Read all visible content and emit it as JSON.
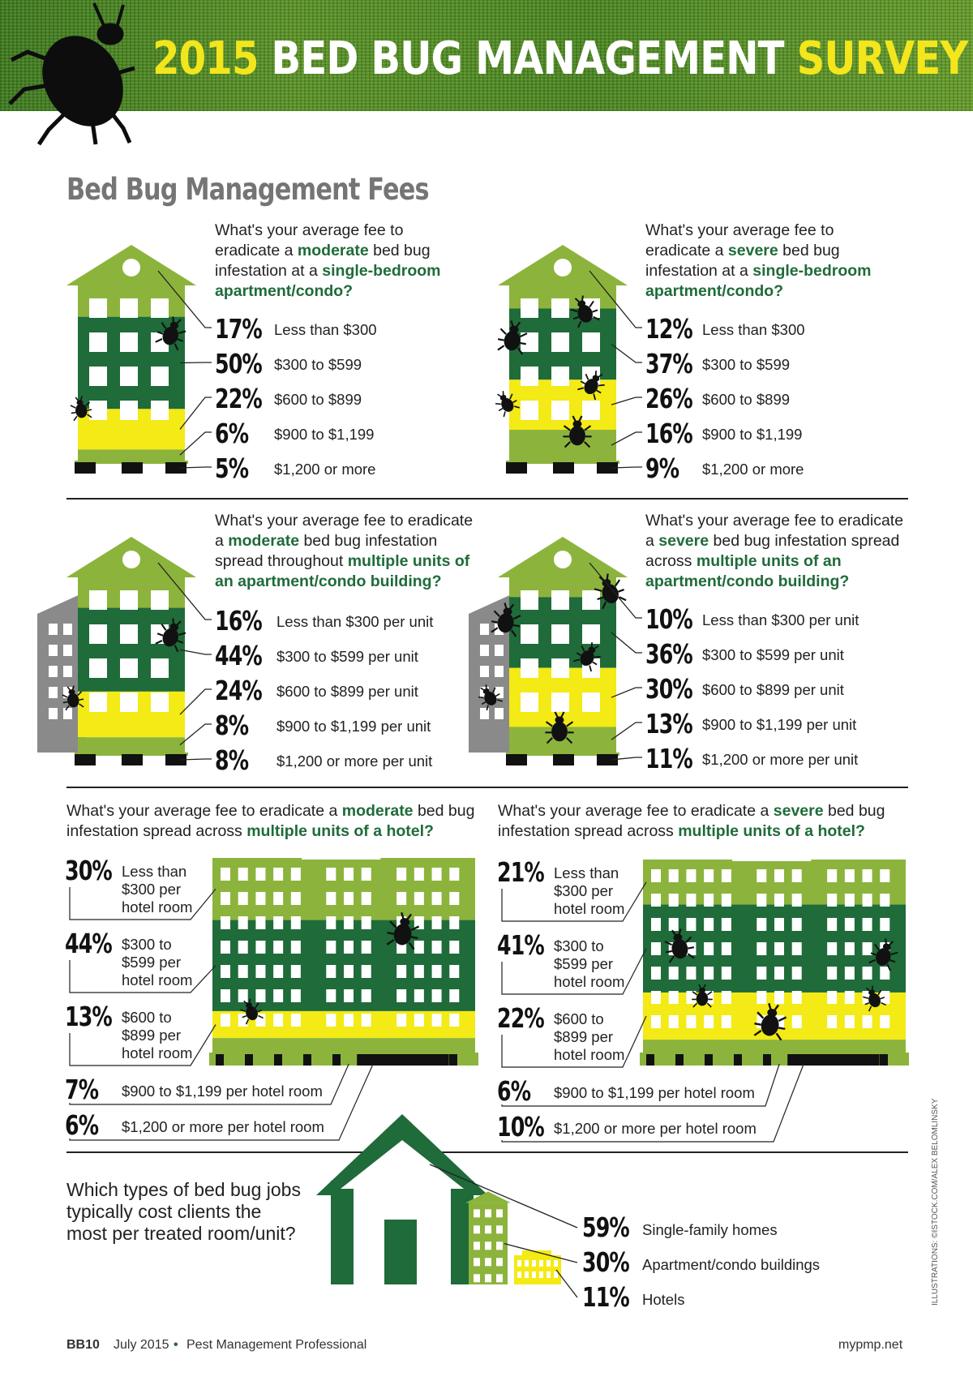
{
  "header": {
    "title_part1": "2015 ",
    "title_part2": "BED BUG MANAGEMENT ",
    "title_part3": "SURVEY",
    "icon": "bed-bug-silhouette-icon"
  },
  "section_title": "Bed Bug Management Fees",
  "colors": {
    "dark_green": "#1f6b3a",
    "light_green": "#8cb43c",
    "yellow": "#f3ea16",
    "gray": "#8a8a8a",
    "bug": "#111111"
  },
  "chart_data": [
    {
      "id": "moderate-single",
      "type": "bar",
      "q_parts": [
        "What's your average fee to eradicate a ",
        "moderate",
        " bed bug infestation at a ",
        "single-bedroom apartment/condo?"
      ],
      "categories": [
        "Less than $300",
        "$300 to $599",
        "$600 to $899",
        "$900 to $1,199",
        "$1,200 or more"
      ],
      "values": [
        17,
        50,
        22,
        6,
        5
      ],
      "labels": [
        "17%",
        "50%",
        "22%",
        "6%",
        "5%"
      ]
    },
    {
      "id": "severe-single",
      "type": "bar",
      "q_parts": [
        "What's your average fee to eradicate a ",
        "severe",
        " bed bug infestation at a ",
        "single-bedroom apartment/condo?"
      ],
      "categories": [
        "Less than $300",
        "$300 to $599",
        "$600 to $899",
        "$900 to $1,199",
        "$1,200 or more"
      ],
      "values": [
        12,
        37,
        26,
        16,
        9
      ],
      "labels": [
        "12%",
        "37%",
        "26%",
        "16%",
        "9%"
      ]
    },
    {
      "id": "moderate-multi",
      "type": "bar",
      "q_parts": [
        "What's your average fee to eradicate a ",
        "moderate",
        " bed bug infestation spread throughout ",
        "multiple units of an apartment/condo building?"
      ],
      "categories": [
        "Less than $300 per unit",
        "$300 to $599 per unit",
        "$600 to $899 per unit",
        "$900 to $1,199 per unit",
        "$1,200 or more per unit"
      ],
      "values": [
        16,
        44,
        24,
        8,
        8
      ],
      "labels": [
        "16%",
        "44%",
        "24%",
        "8%",
        "8%"
      ]
    },
    {
      "id": "severe-multi",
      "type": "bar",
      "q_parts": [
        "What's your average fee to eradicate a ",
        "severe",
        " bed bug infestation spread across ",
        "multiple units of an apartment/condo building?"
      ],
      "categories": [
        "Less than $300 per unit",
        "$300 to $599 per unit",
        "$600 to $899 per unit",
        "$900 to $1,199 per unit",
        "$1,200 or more per unit"
      ],
      "values": [
        10,
        36,
        30,
        13,
        11
      ],
      "labels": [
        "10%",
        "36%",
        "30%",
        "13%",
        "11%"
      ]
    },
    {
      "id": "moderate-hotel",
      "type": "bar",
      "q_parts": [
        "What's your average fee to eradicate a ",
        "moderate",
        " bed bug infestation spread across ",
        "multiple units of a hotel?"
      ],
      "categories": [
        "Less than $300 per hotel room",
        "$300 to $599 per hotel room",
        "$600 to $899 per hotel room",
        "$900 to $1,199 per hotel room",
        "$1,200 or more per hotel room"
      ],
      "values": [
        30,
        44,
        13,
        7,
        6
      ],
      "labels": [
        "30%",
        "44%",
        "13%",
        "7%",
        "6%"
      ]
    },
    {
      "id": "severe-hotel",
      "type": "bar",
      "q_parts": [
        "What's your average fee to eradicate a ",
        "severe",
        " bed bug infestation spread across ",
        "multiple units of a hotel?"
      ],
      "categories": [
        "Less than $300 per hotel room",
        "$300 to $599 per hotel room",
        "$600 to $899 per hotel room",
        "$900 to $1,199 per hotel room",
        "$1,200 or more per hotel room"
      ],
      "values": [
        21,
        41,
        22,
        6,
        10
      ],
      "labels": [
        "21%",
        "41%",
        "22%",
        "6%",
        "10%"
      ]
    },
    {
      "id": "most-cost",
      "type": "bar",
      "question": "Which types of bed bug jobs typically cost clients the most per treated room/unit?",
      "categories": [
        "Single-family homes",
        "Apartment/condo buildings",
        "Hotels"
      ],
      "values": [
        59,
        30,
        11
      ],
      "labels": [
        "59%",
        "30%",
        "11%"
      ]
    }
  ],
  "footer": {
    "page": "BB10",
    "date": "July 2015",
    "publication": "Pest Management Professional",
    "url": "mypmp.net",
    "credit": "ILLUSTRATIONS: ©ISTOCK.COM/ALEX BELOMLINSKY"
  }
}
